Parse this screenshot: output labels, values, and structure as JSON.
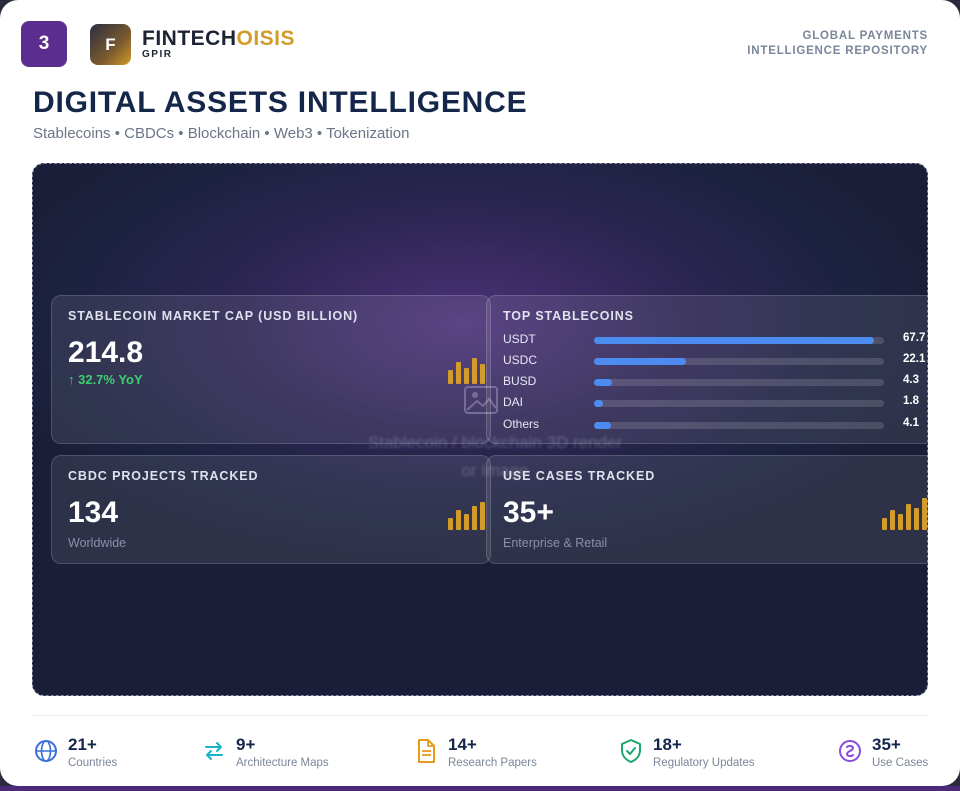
{
  "header": {
    "page_number": "3",
    "logo_letter": "F",
    "brand_main": "FINTECH",
    "brand_accent": "OISIS",
    "brand_sub": "GPIR",
    "tagline_line1": "GLOBAL PAYMENTS",
    "tagline_line2": "INTELLIGENCE REPOSITORY",
    "accent_color": "#d39b2a",
    "page_badge_color": "#5b2d8e"
  },
  "page": {
    "title": "DIGITAL ASSETS INTELLIGENCE",
    "subtitle": "Stablecoins • CBDCs • Blockchain • Web3 • Tokenization"
  },
  "hero": {
    "placeholder_line1": "Stablecoin / blockchain 3D render",
    "placeholder_line2": "or Image",
    "placeholder_icon": "image-icon"
  },
  "panels": {
    "market_cap": {
      "label": "STABLECOIN MARKET CAP (USD BILLION)",
      "value": "214.8",
      "delta": "↑ 32.7% YoY",
      "delta_color": "#3ccf6e"
    },
    "top_stablecoins": {
      "label": "TOP STABLECOINS",
      "bar_color": "#4c8cf0",
      "items": [
        {
          "name": "USDT",
          "value": "67.7",
          "share": 67.7
        },
        {
          "name": "USDC",
          "value": "22.1",
          "share": 22.1
        },
        {
          "name": "BUSD",
          "value": "4.3",
          "share": 4.3
        },
        {
          "name": "DAI",
          "value": "1.8",
          "share": 1.8
        },
        {
          "name": "Others",
          "value": "4.1",
          "share": 4.1
        }
      ]
    },
    "cbdc": {
      "label": "CBDC PROJECTS TRACKED",
      "value": "134",
      "note": "Worldwide"
    },
    "use_cases": {
      "label": "USE CASES TRACKED",
      "value": "35+",
      "note": "Enterprise & Retail"
    }
  },
  "stats": [
    {
      "num": "21+",
      "label": "Countries",
      "icon": "globe-icon",
      "color": "#3b6fd8"
    },
    {
      "num": "9+",
      "label": "Architecture Maps",
      "icon": "swap-arrows-icon",
      "color": "#16b3c9"
    },
    {
      "num": "14+",
      "label": "Research Papers",
      "icon": "document-icon",
      "color": "#e79a1c"
    },
    {
      "num": "18+",
      "label": "Regulatory Updates",
      "icon": "shield-check-icon",
      "color": "#1fa56b"
    },
    {
      "num": "35+",
      "label": "Use Cases",
      "icon": "coin-icon",
      "color": "#8a4be0"
    }
  ]
}
